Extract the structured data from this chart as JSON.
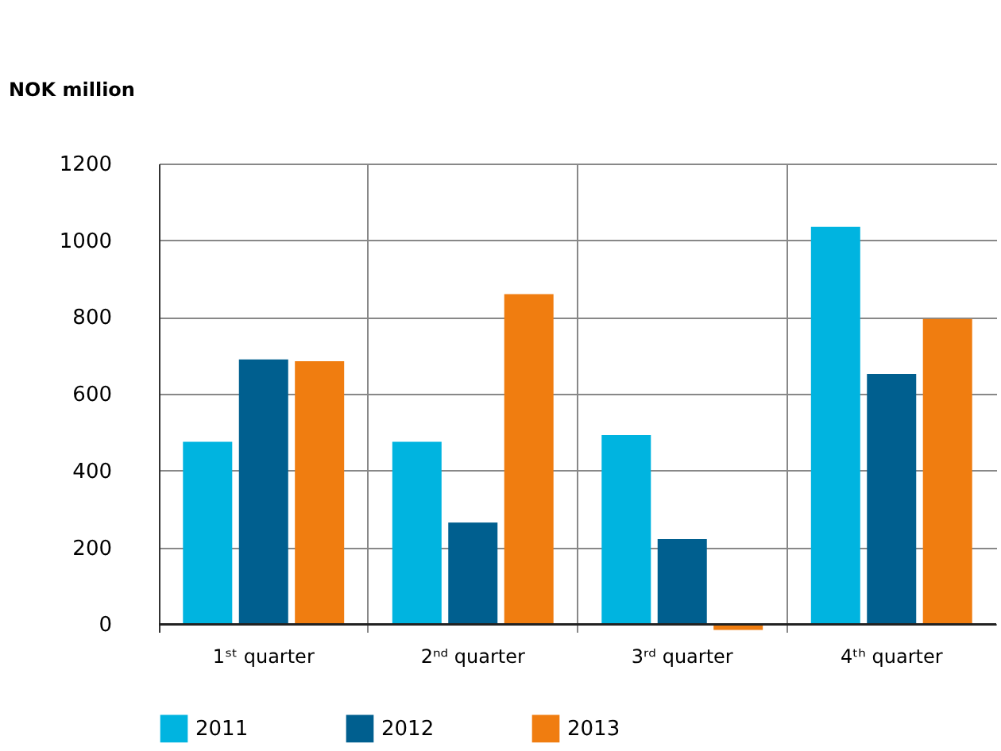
{
  "chart_data": {
    "type": "bar",
    "ylabel": "NOK million",
    "categories": [
      "1ˢᵗ quarter",
      "2ⁿᵈ quarter",
      "3ʳᵈ quarter",
      "4ᵗʰ quarter"
    ],
    "series": [
      {
        "name": "2011",
        "color": "#00b4e0",
        "values": [
          475,
          475,
          493,
          1035
        ]
      },
      {
        "name": "2012",
        "color": "#005f8f",
        "values": [
          690,
          265,
          222,
          652
        ]
      },
      {
        "name": "2013",
        "color": "#f07d10",
        "values": [
          685,
          860,
          -15,
          795
        ]
      }
    ],
    "ylim": [
      -20,
      1200
    ],
    "yticks": [
      0,
      200,
      400,
      600,
      800,
      1000,
      1200
    ],
    "grid": true,
    "legend": "bottom"
  }
}
